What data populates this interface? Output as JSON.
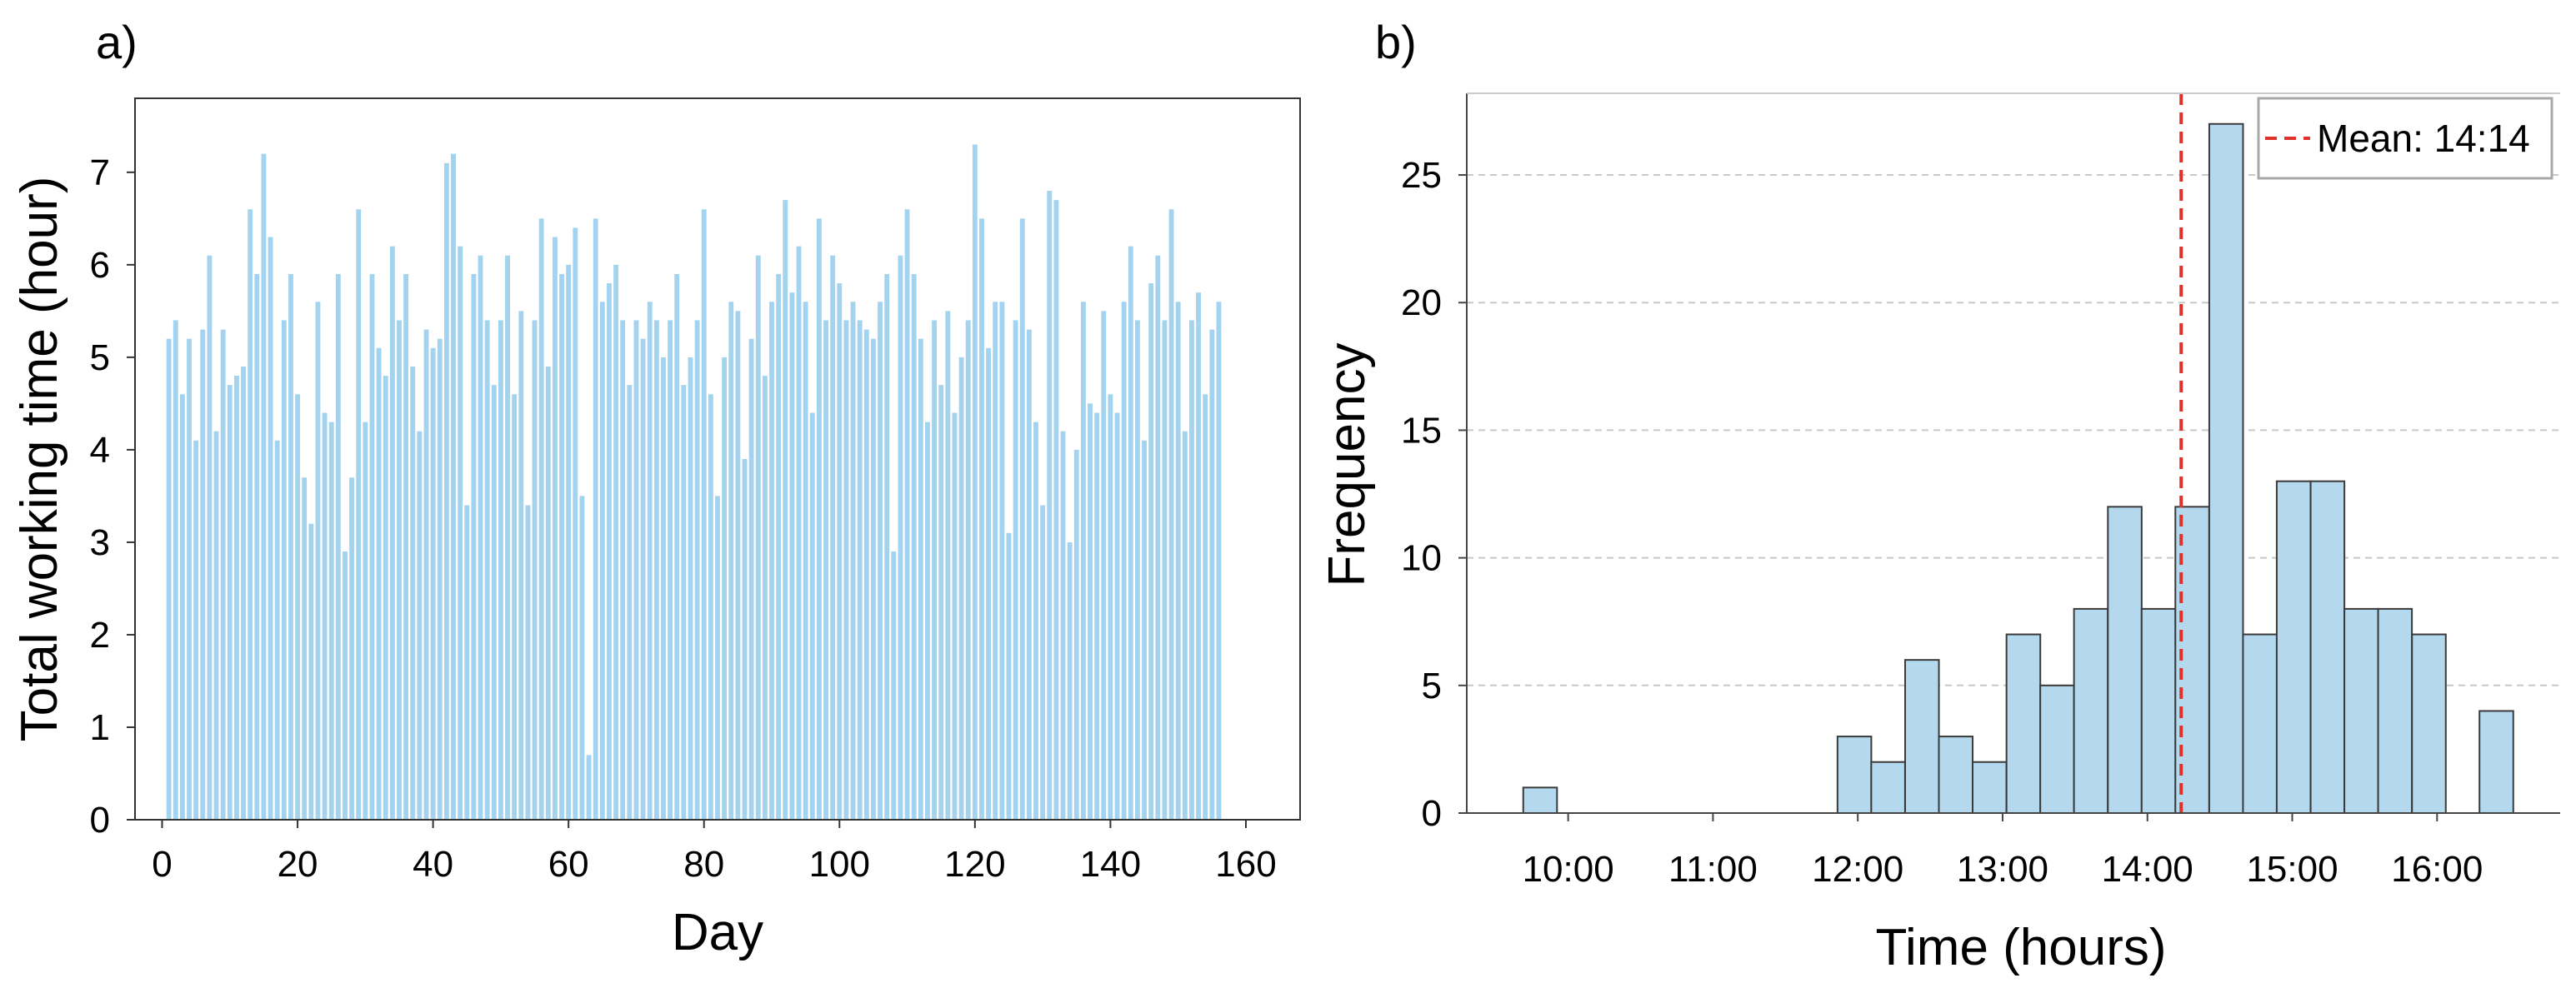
{
  "chart_data": [
    {
      "panel_label": "a)",
      "type": "bar",
      "xlabel": "Day",
      "ylabel": "Total working time (hour)",
      "xlim": [
        -4,
        168
      ],
      "ylim": [
        0,
        7.8
      ],
      "xticks": [
        0,
        20,
        40,
        60,
        80,
        100,
        120,
        140,
        160
      ],
      "yticks": [
        0,
        1,
        2,
        3,
        4,
        5,
        6,
        7
      ],
      "bar_color": "#a3d3ef",
      "grid": false,
      "x": [
        1,
        2,
        3,
        4,
        5,
        6,
        7,
        8,
        9,
        10,
        11,
        12,
        13,
        14,
        15,
        16,
        17,
        18,
        19,
        20,
        21,
        22,
        23,
        24,
        25,
        26,
        27,
        28,
        29,
        30,
        31,
        32,
        33,
        34,
        35,
        36,
        37,
        38,
        39,
        40,
        41,
        42,
        43,
        44,
        45,
        46,
        47,
        48,
        49,
        50,
        51,
        52,
        53,
        54,
        55,
        56,
        57,
        58,
        59,
        60,
        61,
        62,
        63,
        64,
        65,
        66,
        67,
        68,
        69,
        70,
        71,
        72,
        73,
        74,
        75,
        76,
        77,
        78,
        79,
        80,
        81,
        82,
        83,
        84,
        85,
        86,
        87,
        88,
        89,
        90,
        91,
        92,
        93,
        94,
        95,
        96,
        97,
        98,
        99,
        100,
        101,
        102,
        103,
        104,
        105,
        106,
        107,
        108,
        109,
        110,
        111,
        112,
        113,
        114,
        115,
        116,
        117,
        118,
        119,
        120,
        121,
        122,
        123,
        124,
        125,
        126,
        127,
        128,
        129,
        130,
        131,
        132,
        133,
        134,
        135,
        136,
        137,
        138,
        139,
        140,
        141,
        142,
        143,
        144,
        145,
        146,
        147,
        148,
        149,
        150,
        151,
        152,
        153,
        154,
        155,
        156
      ],
      "values": [
        5.2,
        5.4,
        4.6,
        5.2,
        4.1,
        5.3,
        6.1,
        4.2,
        5.3,
        4.7,
        4.8,
        4.9,
        6.6,
        5.9,
        7.2,
        6.3,
        4.1,
        5.4,
        5.9,
        4.6,
        3.7,
        3.2,
        5.6,
        4.4,
        4.3,
        5.9,
        2.9,
        3.7,
        6.6,
        4.3,
        5.9,
        5.1,
        4.8,
        6.2,
        5.4,
        5.9,
        4.9,
        4.2,
        5.3,
        5.1,
        5.2,
        7.1,
        7.2,
        6.2,
        3.4,
        5.9,
        6.1,
        5.4,
        4.7,
        5.4,
        6.1,
        4.6,
        5.5,
        3.4,
        5.4,
        6.5,
        4.9,
        6.3,
        5.9,
        6.0,
        6.4,
        3.5,
        0.7,
        6.5,
        5.6,
        5.8,
        6.0,
        5.4,
        4.7,
        5.4,
        5.2,
        5.6,
        5.4,
        5.0,
        5.4,
        5.9,
        4.7,
        5.0,
        5.4,
        6.6,
        4.6,
        3.5,
        5.0,
        5.6,
        5.5,
        3.9,
        5.2,
        6.1,
        4.8,
        5.6,
        5.9,
        6.7,
        5.7,
        6.2,
        5.6,
        4.4,
        6.5,
        5.4,
        6.1,
        5.8,
        5.4,
        5.6,
        5.4,
        5.3,
        5.2,
        5.6,
        5.9,
        2.9,
        6.1,
        6.6,
        5.9,
        5.2,
        4.3,
        5.4,
        4.7,
        5.5,
        4.4,
        5.0,
        5.4,
        7.3,
        6.5,
        5.1,
        5.6,
        5.6,
        3.1,
        5.4,
        6.5,
        5.3,
        4.3,
        3.4,
        6.8,
        6.7,
        4.2,
        3.0,
        4.0,
        5.6,
        4.5,
        4.4,
        5.5,
        4.6,
        4.4,
        5.6,
        6.2,
        5.4,
        4.1,
        5.8,
        6.1,
        5.4,
        6.6,
        5.6,
        4.2,
        5.4,
        5.7,
        4.6,
        5.3,
        5.6
      ]
    },
    {
      "panel_label": "b)",
      "type": "bar",
      "subtype": "histogram",
      "xlabel": "Time (hours)",
      "ylabel": "Frequency",
      "xlim": [
        9.3,
        16.85
      ],
      "ylim": [
        0,
        28.2
      ],
      "xtick_values": [
        10,
        11,
        12,
        13,
        14,
        15,
        16
      ],
      "xtick_labels": [
        "10:00",
        "11:00",
        "12:00",
        "13:00",
        "14:00",
        "15:00",
        "16:00"
      ],
      "yticks": [
        0,
        5,
        10,
        15,
        20,
        25
      ],
      "grid": "horizontal dashed",
      "bar_color": "#b4d9ee",
      "bar_edge_color": "#3a3a3a",
      "bin_width": 0.2333,
      "bins": [
        {
          "start": 9.69,
          "count": 1
        },
        {
          "start": 11.86,
          "count": 3
        },
        {
          "start": 12.093,
          "count": 2
        },
        {
          "start": 12.327,
          "count": 6
        },
        {
          "start": 12.56,
          "count": 3
        },
        {
          "start": 12.793,
          "count": 2
        },
        {
          "start": 13.027,
          "count": 7
        },
        {
          "start": 13.26,
          "count": 5
        },
        {
          "start": 13.493,
          "count": 8
        },
        {
          "start": 13.727,
          "count": 12
        },
        {
          "start": 13.96,
          "count": 8
        },
        {
          "start": 14.193,
          "count": 12
        },
        {
          "start": 14.427,
          "count": 27
        },
        {
          "start": 14.66,
          "count": 7
        },
        {
          "start": 14.893,
          "count": 13
        },
        {
          "start": 15.127,
          "count": 13
        },
        {
          "start": 15.36,
          "count": 8
        },
        {
          "start": 15.593,
          "count": 8
        },
        {
          "start": 15.827,
          "count": 7
        },
        {
          "start": 16.06,
          "count": 0
        },
        {
          "start": 16.293,
          "count": 4
        }
      ],
      "mean_line": {
        "x": 14.233,
        "color": "#e0302a",
        "style": "dashed"
      },
      "legend": {
        "placement": "top-right",
        "entries": [
          {
            "label": "Mean: 14:14",
            "color": "#e0302a",
            "style": "dashed"
          }
        ]
      }
    }
  ]
}
